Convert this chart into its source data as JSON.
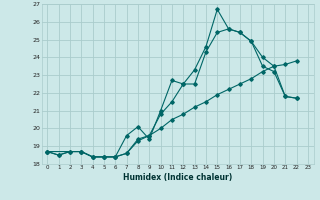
{
  "title": "",
  "xlabel": "Humidex (Indice chaleur)",
  "bg_color": "#cce8e8",
  "grid_color": "#aacccc",
  "line_color": "#006666",
  "marker_color": "#006666",
  "xlim": [
    -0.5,
    23.5
  ],
  "ylim": [
    18,
    27
  ],
  "yticks": [
    18,
    19,
    20,
    21,
    22,
    23,
    24,
    25,
    26,
    27
  ],
  "xticks": [
    0,
    1,
    2,
    3,
    4,
    5,
    6,
    7,
    8,
    9,
    10,
    11,
    12,
    13,
    14,
    15,
    16,
    17,
    18,
    19,
    20,
    21,
    22,
    23
  ],
  "line1_x": [
    0,
    1,
    2,
    3,
    4,
    5,
    6,
    7,
    8,
    9,
    10,
    11,
    12,
    13,
    14,
    15,
    16,
    17,
    18,
    19,
    20,
    21,
    22
  ],
  "line1_y": [
    18.7,
    18.5,
    18.7,
    18.7,
    18.4,
    18.4,
    18.4,
    19.6,
    20.1,
    19.4,
    21.0,
    22.7,
    22.5,
    23.3,
    24.6,
    26.7,
    25.6,
    25.4,
    24.9,
    23.5,
    23.2,
    21.8,
    21.7
  ],
  "line2_x": [
    0,
    1,
    2,
    3,
    4,
    5,
    6,
    7,
    8,
    9,
    10,
    11,
    12,
    13,
    14,
    15,
    16,
    17,
    18,
    19,
    20,
    21,
    22
  ],
  "line2_y": [
    18.7,
    18.5,
    18.7,
    18.7,
    18.4,
    18.4,
    18.4,
    18.6,
    19.3,
    19.6,
    20.0,
    20.5,
    20.8,
    21.2,
    21.5,
    21.9,
    22.2,
    22.5,
    22.8,
    23.2,
    23.5,
    23.6,
    23.8
  ],
  "line3_x": [
    0,
    3,
    4,
    5,
    6,
    7,
    8,
    9,
    10,
    11,
    12,
    13,
    14,
    15,
    16,
    17,
    18,
    19,
    20,
    21,
    22
  ],
  "line3_y": [
    18.7,
    18.7,
    18.4,
    18.4,
    18.4,
    18.6,
    19.4,
    19.6,
    20.8,
    21.5,
    22.5,
    22.5,
    24.3,
    25.4,
    25.6,
    25.4,
    24.9,
    24.0,
    23.5,
    21.8,
    21.7
  ]
}
